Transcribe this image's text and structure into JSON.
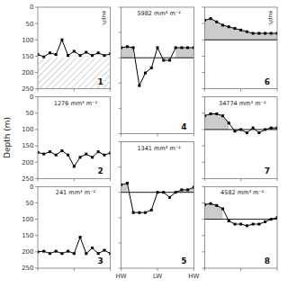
{
  "chart_data": [
    {
      "type": "line",
      "title": "1",
      "annotations": [
        "euph."
      ],
      "x": [
        0,
        1,
        2,
        3,
        4,
        5,
        6,
        7,
        8,
        9,
        10,
        11,
        12
      ],
      "values": [
        145,
        152,
        140,
        145,
        100,
        148,
        135,
        148,
        138,
        148,
        140,
        148,
        143
      ],
      "hatch_y": 155,
      "color": "#000000",
      "marker": "square",
      "line_style": "solid",
      "xlim": [
        0,
        12
      ],
      "ylim": [
        250,
        0
      ],
      "xticks": [
        0,
        6,
        12
      ],
      "yticks": [
        0,
        50,
        100,
        150,
        200,
        250
      ],
      "tick_labels": "y",
      "grid": false
    },
    {
      "type": "line",
      "title": "2",
      "subtitle": "1276 mm³ m⁻²",
      "ylabel": "Depth (m)",
      "x": [
        0,
        1,
        2,
        3,
        4,
        5,
        6,
        7,
        8,
        9,
        10,
        11,
        12
      ],
      "values": [
        170,
        175,
        168,
        178,
        165,
        178,
        213,
        185,
        175,
        185,
        168,
        178,
        172
      ],
      "color": "#000000",
      "marker": "square",
      "line_style": "solid",
      "xlim": [
        0,
        12
      ],
      "ylim": [
        250,
        0
      ],
      "xticks": [
        0,
        6,
        12
      ],
      "yticks": [
        0,
        50,
        100,
        150,
        200,
        250
      ],
      "tick_labels": "y",
      "grid": false
    },
    {
      "type": "line",
      "title": "3",
      "subtitle": "241 mm³ m⁻²",
      "x": [
        0,
        1,
        2,
        3,
        4,
        5,
        6,
        7,
        8,
        9,
        10,
        11,
        12
      ],
      "values": [
        200,
        198,
        205,
        198,
        205,
        198,
        205,
        155,
        205,
        188,
        205,
        195,
        205
      ],
      "color": "#000000",
      "marker": "square",
      "line_style": "solid",
      "xlim": [
        0,
        12
      ],
      "ylim": [
        250,
        0
      ],
      "xticks": [
        0,
        6,
        12
      ],
      "yticks": [
        0,
        50,
        100,
        150,
        200,
        250
      ],
      "tick_labels": "y",
      "grid": false
    },
    {
      "type": "line",
      "title": "4",
      "subtitle": "5982 mm³ m⁻²",
      "x": [
        0,
        1,
        2,
        3,
        4,
        5,
        6,
        7,
        8,
        9,
        10,
        11,
        12
      ],
      "values": [
        80,
        78,
        80,
        155,
        130,
        120,
        80,
        105,
        105,
        80,
        80,
        80,
        80
      ],
      "ref_line": 100,
      "color": "#000000",
      "marker": "square",
      "line_style": "solid",
      "xlim": [
        0,
        12
      ],
      "ylim": [
        250,
        0
      ],
      "xticks": [
        0,
        6,
        12
      ],
      "yticks": [
        0,
        50,
        100,
        150,
        200,
        250
      ],
      "tick_labels": false,
      "grid": false
    },
    {
      "type": "line",
      "title": "5",
      "subtitle": "1341 mm³ m⁻²",
      "x": [
        0,
        1,
        2,
        3,
        4,
        5,
        6,
        7,
        8,
        9,
        10,
        11,
        12
      ],
      "values": [
        85,
        82,
        140,
        140,
        140,
        135,
        100,
        100,
        110,
        100,
        95,
        95,
        90
      ],
      "ref_line": 100,
      "color": "#000000",
      "marker": "square",
      "line_style": "solid",
      "xlim": [
        0,
        12
      ],
      "ylim": [
        250,
        0
      ],
      "xticks": [
        {
          "value": 0,
          "label": "HW"
        },
        {
          "value": 6,
          "label": "LW"
        },
        {
          "value": 12,
          "label": "HW"
        }
      ],
      "yticks": [
        0,
        50,
        100,
        150,
        200,
        250
      ],
      "tick_labels": "x",
      "grid": false
    },
    {
      "type": "line",
      "title": "6",
      "annotations": [
        "euph."
      ],
      "x": [
        0,
        1,
        2,
        3,
        4,
        5,
        6,
        7,
        8,
        9,
        10,
        11,
        12
      ],
      "values": [
        40,
        35,
        45,
        55,
        60,
        65,
        70,
        75,
        80,
        80,
        80,
        80,
        80
      ],
      "ref_line": 100,
      "color": "#000000",
      "marker": "square",
      "line_style": "solid",
      "xlim": [
        0,
        12
      ],
      "ylim": [
        250,
        0
      ],
      "xticks": [
        0,
        6,
        12
      ],
      "yticks": [
        0,
        50,
        100,
        150,
        200,
        250
      ],
      "tick_labels": false,
      "grid": false
    },
    {
      "type": "line",
      "title": "7",
      "subtitle": "34774 mm³ m⁻²",
      "x": [
        0,
        1,
        2,
        3,
        4,
        5,
        6,
        7,
        8,
        9,
        10,
        11,
        12
      ],
      "values": [
        58,
        52,
        52,
        58,
        80,
        105,
        100,
        110,
        95,
        110,
        100,
        95,
        95
      ],
      "ref_line": 100,
      "color": "#000000",
      "marker": "square",
      "line_style": "solid",
      "xlim": [
        0,
        12
      ],
      "ylim": [
        250,
        0
      ],
      "xticks": [
        0,
        6,
        12
      ],
      "yticks": [
        0,
        50,
        100,
        150,
        200,
        250
      ],
      "tick_labels": false,
      "grid": false
    },
    {
      "type": "line",
      "title": "8",
      "subtitle": "4582 mm³ m⁻²",
      "x": [
        0,
        1,
        2,
        3,
        4,
        5,
        6,
        7,
        8,
        9,
        10,
        11,
        12
      ],
      "values": [
        55,
        52,
        58,
        68,
        105,
        115,
        115,
        120,
        115,
        115,
        108,
        100,
        95
      ],
      "ref_line": 100,
      "color": "#000000",
      "marker": "square",
      "line_style": "solid",
      "xlim": [
        0,
        12
      ],
      "ylim": [
        250,
        0
      ],
      "xticks": [
        0,
        6,
        12
      ],
      "yticks": [
        0,
        50,
        100,
        150,
        200,
        250
      ],
      "tick_labels": false,
      "grid": false
    }
  ]
}
